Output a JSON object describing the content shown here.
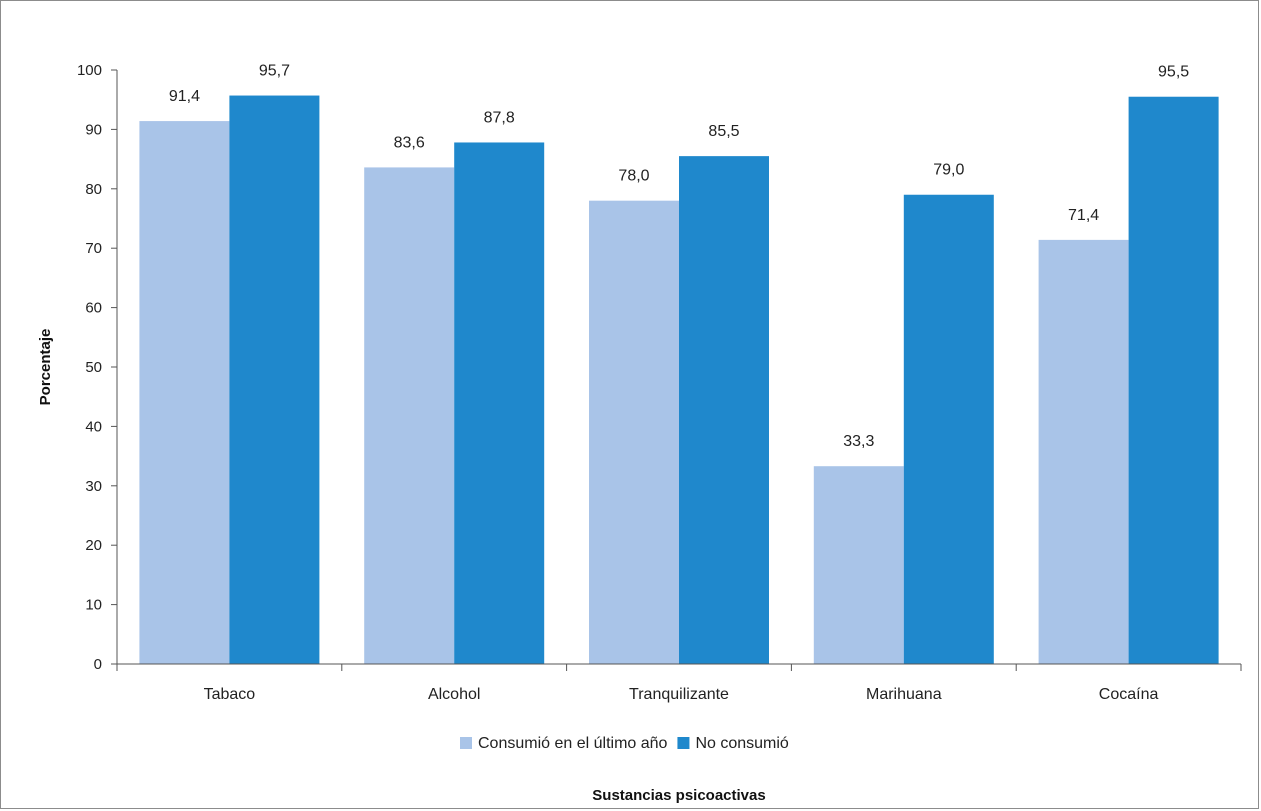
{
  "chart_data": {
    "type": "bar",
    "title": "",
    "xlabel": "Sustancias psicoactivas",
    "ylabel": "Porcentaje",
    "ylim": [
      0,
      100
    ],
    "yticks": [
      0,
      10,
      20,
      30,
      40,
      50,
      60,
      70,
      80,
      90,
      100
    ],
    "categories": [
      "Tabaco",
      "Alcohol",
      "Tranquilizante",
      "Marihuana",
      "Cocaína"
    ],
    "series": [
      {
        "name": "Consumió en el último año",
        "values": [
          91.4,
          83.6,
          78.0,
          33.3,
          71.4
        ],
        "labels": [
          "91,4",
          "83,6",
          "78,0",
          "33,3",
          "71,4"
        ],
        "color": "#a9c4e8"
      },
      {
        "name": "No consumió",
        "values": [
          95.7,
          87.8,
          85.5,
          79.0,
          95.5
        ],
        "labels": [
          "95,7",
          "87,8",
          "85,5",
          "79,0",
          "95,5"
        ],
        "color": "#1f88cc"
      }
    ],
    "grid": false,
    "legend_position": "bottom"
  }
}
